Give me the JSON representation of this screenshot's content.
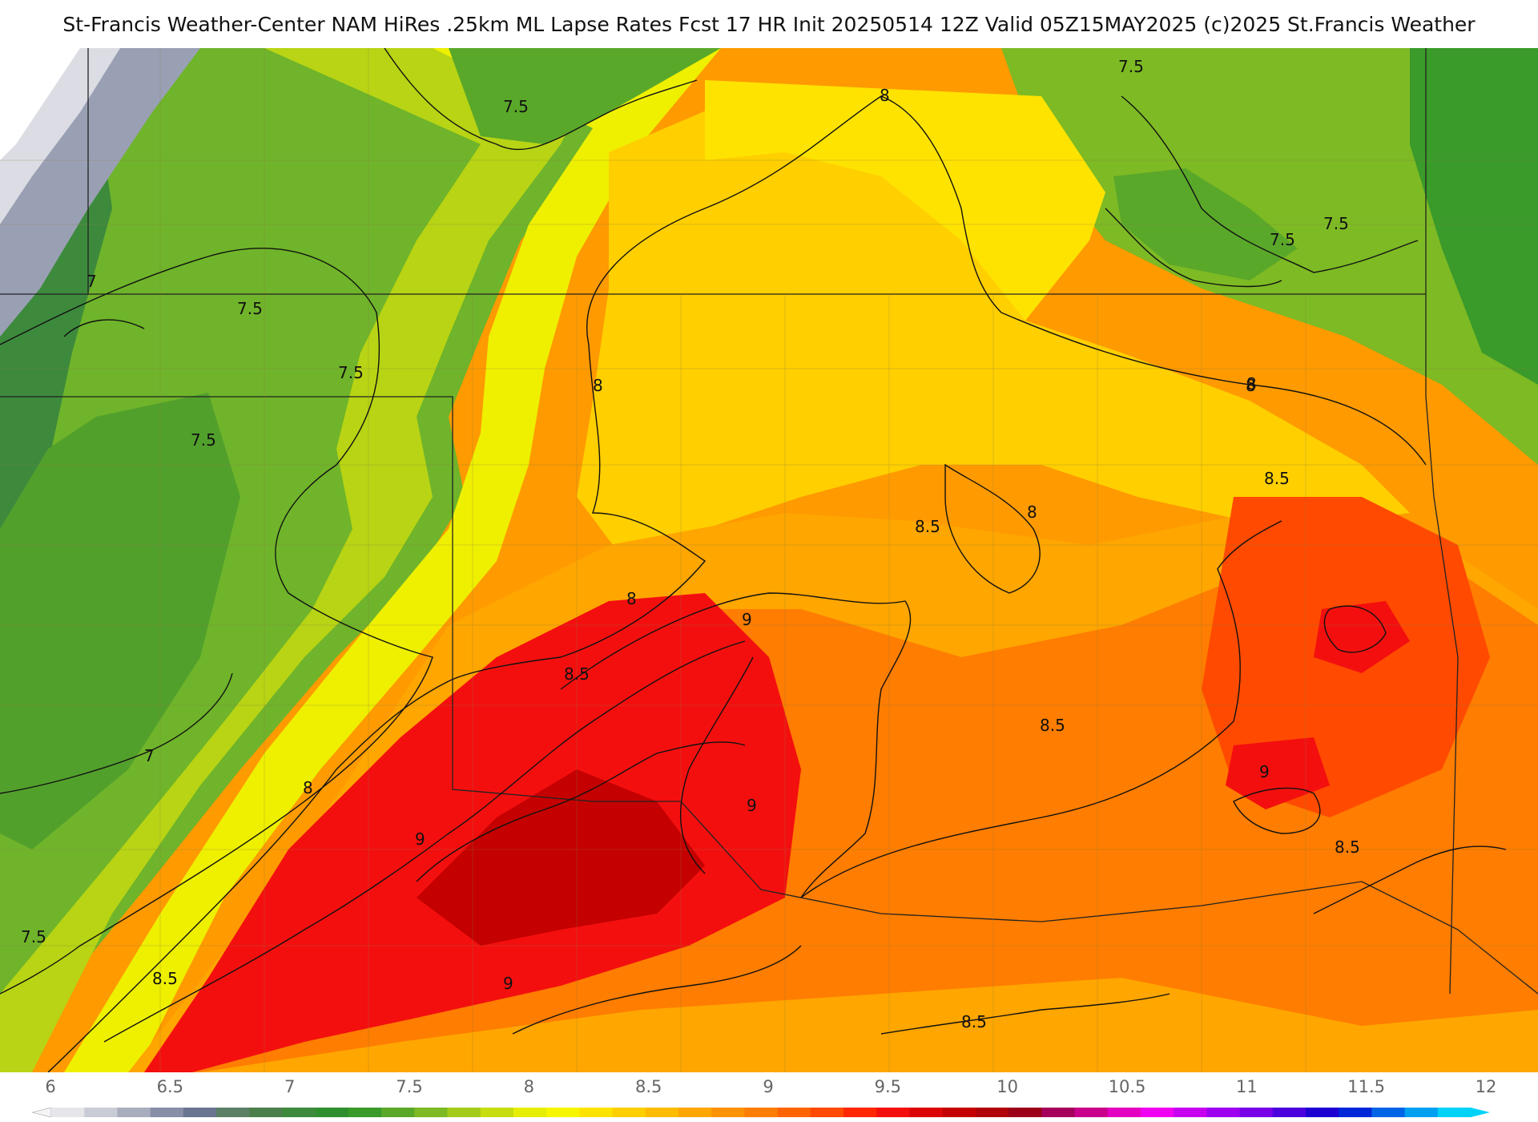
{
  "title": "St-Francis Weather-Center NAM HiRes .25km ML Lapse Rates  Fcst 17 HR Init 20250514 12Z  Valid 05Z15MAY2025    (c)2025 St.Francis Weather",
  "colorbar": {
    "ticks": [
      "6",
      "6.5",
      "7",
      "7.5",
      "8",
      "8.5",
      "9",
      "9.5",
      "10",
      "10.5",
      "11",
      "11.5",
      "12"
    ],
    "range": [
      6,
      12
    ],
    "colors": [
      "#e6e6ea",
      "#c9ccd6",
      "#a9aebe",
      "#878ea6",
      "#6a7591",
      "#5c8066",
      "#4b7f4b",
      "#3d8a3d",
      "#2f8f2f",
      "#3a9a2a",
      "#5aa82a",
      "#7dba24",
      "#a3cc1a",
      "#c6dd10",
      "#e6ee08",
      "#f7f500",
      "#ffe300",
      "#ffcf00",
      "#ffbb00",
      "#ffa600",
      "#ff9200",
      "#ff7d00",
      "#ff6400",
      "#ff4a00",
      "#ff2600",
      "#f40f0f",
      "#dc0505",
      "#c40000",
      "#b00008",
      "#9c0018",
      "#a4005c",
      "#c8008c",
      "#e400c0",
      "#f000f0",
      "#c800f0",
      "#a000f0",
      "#7800e6",
      "#4c00dc",
      "#1e00d2",
      "#0028d8",
      "#0064e6",
      "#00a0f0",
      "#00d2f8"
    ]
  },
  "contour_labels": [
    "8",
    "7.5",
    "7.5",
    "7.5",
    "7.5",
    "8",
    "7.5",
    "8",
    "7.5",
    "7",
    "7.5",
    "8",
    "8",
    "8.5",
    "8",
    "8.5",
    "9",
    "8.5",
    "9",
    "9",
    "8.5",
    "9",
    "8.5",
    "7",
    "8",
    "7.5",
    "8.5",
    "9",
    "8.5"
  ]
}
